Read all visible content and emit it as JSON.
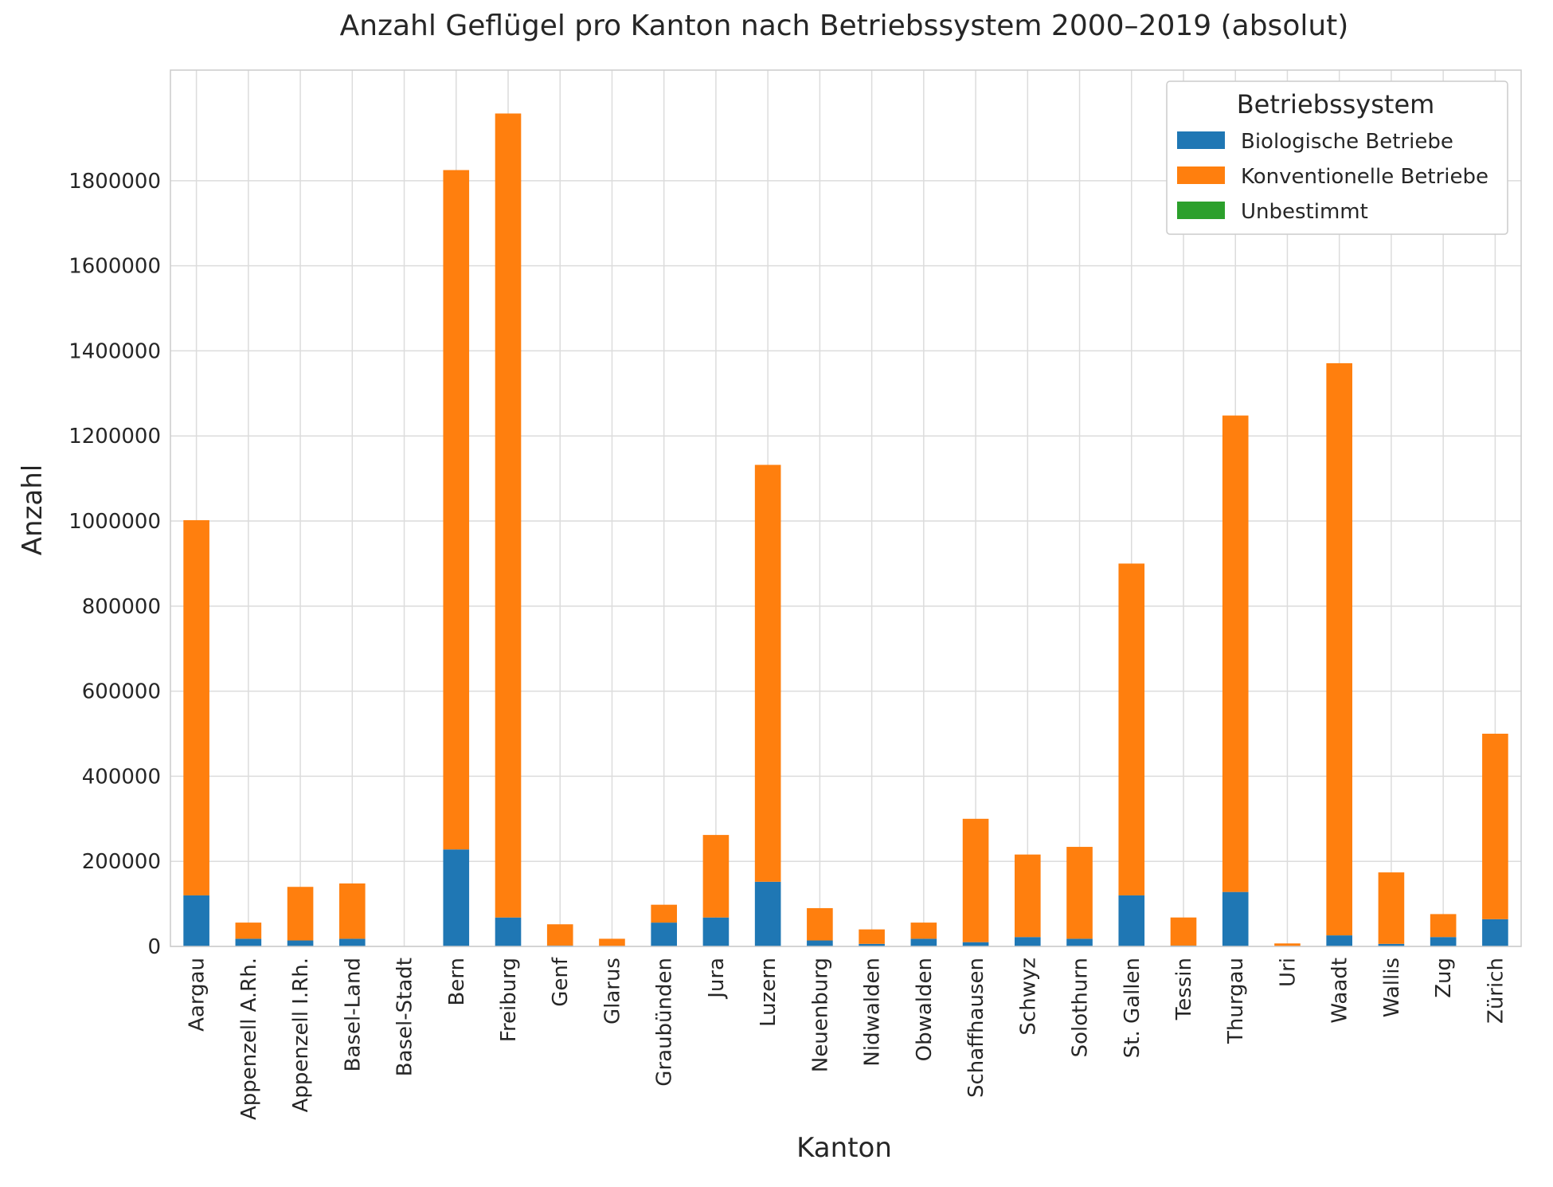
{
  "chart_data": {
    "type": "bar",
    "stacked": true,
    "title": "Anzahl Geflügel pro Kanton nach Betriebssystem 2000–2019 (absolut)",
    "xlabel": "Kanton",
    "ylabel": "Anzahl",
    "ylim": [
      0,
      2060000
    ],
    "yticks": [
      0,
      200000,
      400000,
      600000,
      800000,
      1000000,
      1200000,
      1400000,
      1600000,
      1800000
    ],
    "ytick_labels": [
      "0",
      "200000",
      "400000",
      "600000",
      "800000",
      "1000000",
      "1200000",
      "1400000",
      "1600000",
      "1800000"
    ],
    "grid": true,
    "legend_position": "top-right",
    "legend_title": "Betriebssystem",
    "categories": [
      "Aargau",
      "Appenzell A.Rh.",
      "Appenzell I.Rh.",
      "Basel-Land",
      "Basel-Stadt",
      "Bern",
      "Freiburg",
      "Genf",
      "Glarus",
      "Graubünden",
      "Jura",
      "Luzern",
      "Neuenburg",
      "Nidwalden",
      "Obwalden",
      "Schaffhausen",
      "Schwyz",
      "Solothurn",
      "St. Gallen",
      "Tessin",
      "Thurgau",
      "Uri",
      "Waadt",
      "Wallis",
      "Zug",
      "Zürich"
    ],
    "series": [
      {
        "name": "Biologische Betriebe",
        "color": "#1f77b4",
        "values": [
          120000,
          18000,
          14000,
          18000,
          0,
          228000,
          68000,
          2000,
          1000,
          56000,
          68000,
          152000,
          14000,
          6000,
          18000,
          10000,
          22000,
          18000,
          120000,
          2000,
          128000,
          1000,
          26000,
          6000,
          22000,
          64000
        ]
      },
      {
        "name": "Konventionelle Betriebe",
        "color": "#ff7f0e",
        "values": [
          882000,
          38000,
          126000,
          130000,
          0,
          1597000,
          1890000,
          50000,
          17000,
          42000,
          194000,
          980000,
          76000,
          34000,
          38000,
          290000,
          194000,
          216000,
          780000,
          66000,
          1120000,
          6000,
          1345000,
          168000,
          54000,
          436000
        ]
      },
      {
        "name": "Unbestimmt",
        "color": "#2ca02c",
        "values": [
          0,
          0,
          0,
          0,
          0,
          0,
          0,
          0,
          0,
          0,
          0,
          0,
          0,
          0,
          0,
          0,
          0,
          0,
          0,
          0,
          0,
          0,
          0,
          0,
          0,
          0
        ]
      }
    ]
  }
}
